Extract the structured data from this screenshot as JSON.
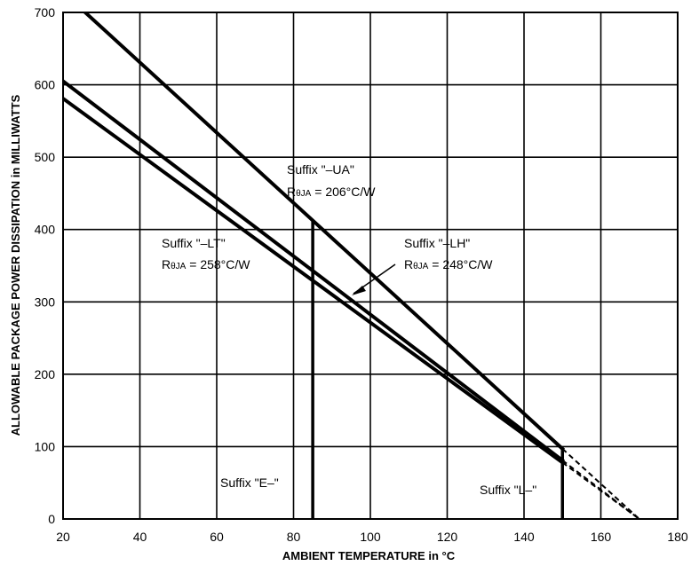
{
  "chart_data": {
    "type": "line",
    "title": "",
    "xlabel": "AMBIENT TEMPERATURE in °C",
    "ylabel": "ALLOWABLE PACKAGE POWER DISSIPATION in MILLIWATTS",
    "xlim": [
      20,
      180
    ],
    "ylim": [
      0,
      700
    ],
    "xticks": [
      20,
      40,
      60,
      80,
      100,
      120,
      140,
      160,
      180
    ],
    "yticks": [
      0,
      100,
      200,
      300,
      400,
      500,
      600,
      700
    ],
    "grid": true,
    "series": [
      {
        "name": "Suffix \"–UA\" RθJA = 206°C/W",
        "x": [
          20,
          150
        ],
        "y": [
          728,
          97
        ],
        "extension": {
          "x": [
            150,
            170
          ],
          "y": [
            97,
            0
          ],
          "style": "dashed"
        }
      },
      {
        "name": "Suffix \"–LH\" RθJA = 248°C/W",
        "x": [
          20,
          150
        ],
        "y": [
          605,
          81
        ],
        "extension": {
          "x": [
            150,
            170
          ],
          "y": [
            81,
            0
          ],
          "style": "dashed"
        }
      },
      {
        "name": "Suffix \"–LT\" RθJA = 258°C/W",
        "x": [
          20,
          150
        ],
        "y": [
          581,
          78
        ],
        "extension": {
          "x": [
            150,
            170
          ],
          "y": [
            78,
            0
          ],
          "style": "dashed"
        }
      }
    ],
    "limits": [
      {
        "label": "Suffix \"E–\"",
        "x": 85
      },
      {
        "label": "Suffix \"L–\"",
        "x": 150
      }
    ],
    "annotations": {
      "ua": {
        "line1": "Suffix \"–UA\"",
        "r": "R",
        "sub": "θJA",
        "val": " = 206°C/W"
      },
      "lt": {
        "line1": "Suffix \"–LT\"",
        "r": "R",
        "sub": "θJA",
        "val": " = 258°C/W"
      },
      "lh": {
        "line1": "Suffix \"–LH\"",
        "r": "R",
        "sub": "θJA",
        "val": " = 248°C/W"
      },
      "e": "Suffix \"E–\"",
      "l": "Suffix \"L–\""
    }
  }
}
